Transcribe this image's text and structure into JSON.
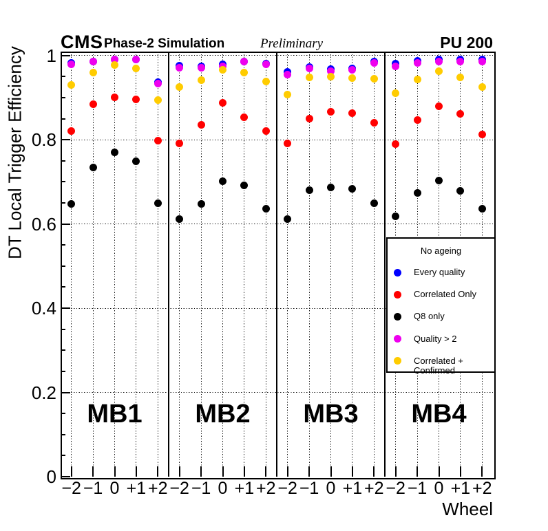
{
  "header": {
    "experiment": "CMS",
    "subtitle": "Phase-2 Simulation",
    "preliminary": "Preliminary",
    "pu_label": "PU 200"
  },
  "axes": {
    "y_title": "DT Local Trigger Efficiency",
    "x_title": "Wheel",
    "y_tick_labels": [
      "0",
      "0.2",
      "0.4",
      "0.6",
      "0.8",
      "1"
    ],
    "y_tick_values": [
      0,
      0.2,
      0.4,
      0.6,
      0.8,
      1
    ],
    "y_minor_step": 0.05,
    "wheel_tick_labels": [
      "−2",
      "−1",
      "0",
      "+1",
      "+2"
    ]
  },
  "legend": {
    "title": "No ageing",
    "entries": [
      {
        "label": "Every quality",
        "color": "#0000ff",
        "icon": "blue-dot-marker"
      },
      {
        "label": "Correlated Only",
        "color": "#ff0000",
        "icon": "red-dot-marker"
      },
      {
        "label": "Q8 only",
        "color": "#000000",
        "icon": "black-dot-marker"
      },
      {
        "label": "Quality > 2",
        "color": "#ee00ee",
        "icon": "magenta-dot-marker"
      },
      {
        "label": "Correlated + Confirmed",
        "color": "#ffcc00",
        "icon": "yellow-dot-marker"
      }
    ]
  },
  "chart_data": {
    "type": "scatter",
    "title": "DT Local Trigger Efficiency vs Wheel (CMS Phase-2 Simulation Preliminary, PU 200)",
    "xlabel": "Wheel",
    "ylabel": "DT Local Trigger Efficiency",
    "ylim": [
      0,
      1.01
    ],
    "grid": "dotted",
    "legend_position": "bottom-right",
    "stations": [
      "MB1",
      "MB2",
      "MB3",
      "MB4"
    ],
    "wheels": [
      -2,
      -1,
      0,
      1,
      2
    ],
    "series": [
      {
        "name": "Every quality",
        "color": "#0000ff",
        "values_by_station": {
          "MB1": [
            0.983,
            0.985,
            0.99,
            0.991,
            0.937
          ],
          "MB2": [
            0.976,
            0.974,
            0.979,
            0.985,
            0.98
          ],
          "MB3": [
            0.961,
            0.972,
            0.968,
            0.969,
            0.985
          ],
          "MB4": [
            0.98,
            0.988,
            0.99,
            0.99,
            0.99
          ]
        }
      },
      {
        "name": "Correlated Only",
        "color": "#ff0000",
        "values_by_station": {
          "MB1": [
            0.821,
            0.884,
            0.9,
            0.895,
            0.797
          ],
          "MB2": [
            0.792,
            0.835,
            0.887,
            0.854,
            0.821
          ],
          "MB3": [
            0.792,
            0.85,
            0.866,
            0.863,
            0.841
          ],
          "MB4": [
            0.789,
            0.847,
            0.879,
            0.862,
            0.813
          ]
        }
      },
      {
        "name": "Q8 only",
        "color": "#000000",
        "values_by_station": {
          "MB1": [
            0.648,
            0.734,
            0.77,
            0.748,
            0.649
          ],
          "MB2": [
            0.612,
            0.648,
            0.702,
            0.691,
            0.636
          ],
          "MB3": [
            0.612,
            0.68,
            0.686,
            0.683,
            0.65
          ],
          "MB4": [
            0.618,
            0.673,
            0.703,
            0.678,
            0.636
          ]
        }
      },
      {
        "name": "Quality > 2",
        "color": "#ee00ee",
        "values_by_station": {
          "MB1": [
            0.979,
            0.985,
            0.99,
            0.991,
            0.933
          ],
          "MB2": [
            0.971,
            0.971,
            0.975,
            0.985,
            0.979
          ],
          "MB3": [
            0.955,
            0.97,
            0.963,
            0.966,
            0.983
          ],
          "MB4": [
            0.975,
            0.983,
            0.985,
            0.985,
            0.985
          ]
        }
      },
      {
        "name": "Correlated + Confirmed",
        "color": "#ffcc00",
        "values_by_station": {
          "MB1": [
            0.93,
            0.96,
            0.977,
            0.97,
            0.894
          ],
          "MB2": [
            0.925,
            0.941,
            0.966,
            0.96,
            0.938
          ],
          "MB3": [
            0.907,
            0.948,
            0.95,
            0.947,
            0.945
          ],
          "MB4": [
            0.91,
            0.943,
            0.963,
            0.948,
            0.925
          ]
        }
      }
    ]
  }
}
